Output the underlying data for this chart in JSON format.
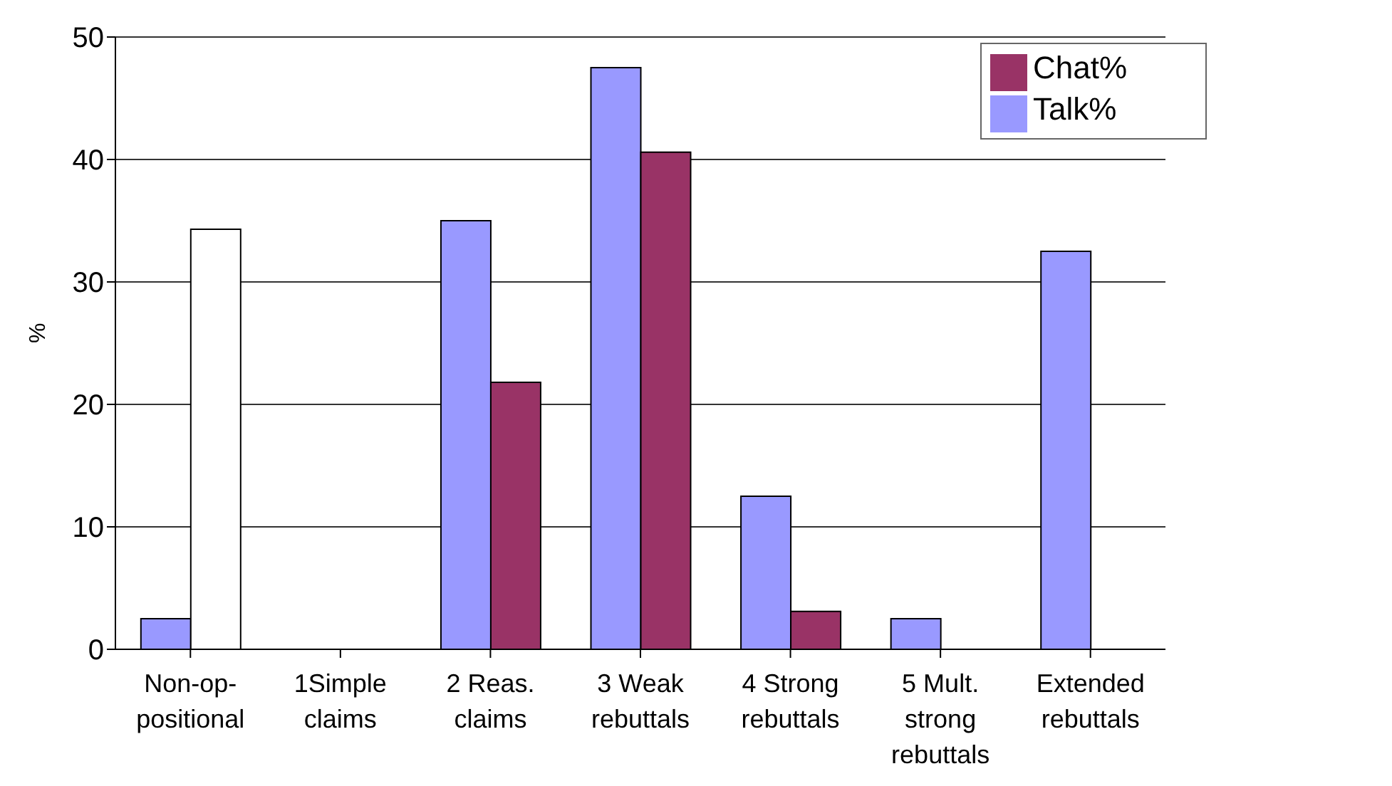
{
  "chart_data": {
    "type": "bar",
    "ylabel": "%",
    "categories": [
      "Non-op-positional",
      "1Simple claims",
      "2 Reas. claims",
      "3 Weak rebuttals",
      "4 Strong rebuttals",
      "5 Mult. strong rebuttals",
      "Extended rebuttals"
    ],
    "series": [
      {
        "name": "Talk%",
        "color": "#9999ff",
        "values": [
          2.5,
          0,
          35,
          47.5,
          12.5,
          2.5,
          32.5
        ]
      },
      {
        "name": "Chat%",
        "color": "#993366",
        "colors": [
          "#ffffff",
          "#993366",
          "#993366",
          "#993366",
          "#993366",
          "#993366",
          "#993366"
        ],
        "values": [
          34.3,
          0,
          21.8,
          40.6,
          3.1,
          0,
          0
        ]
      }
    ],
    "ylim": [
      0,
      50
    ],
    "yticks": [
      0,
      10,
      20,
      30,
      40,
      50
    ],
    "grid": "y",
    "legend": "top right"
  }
}
